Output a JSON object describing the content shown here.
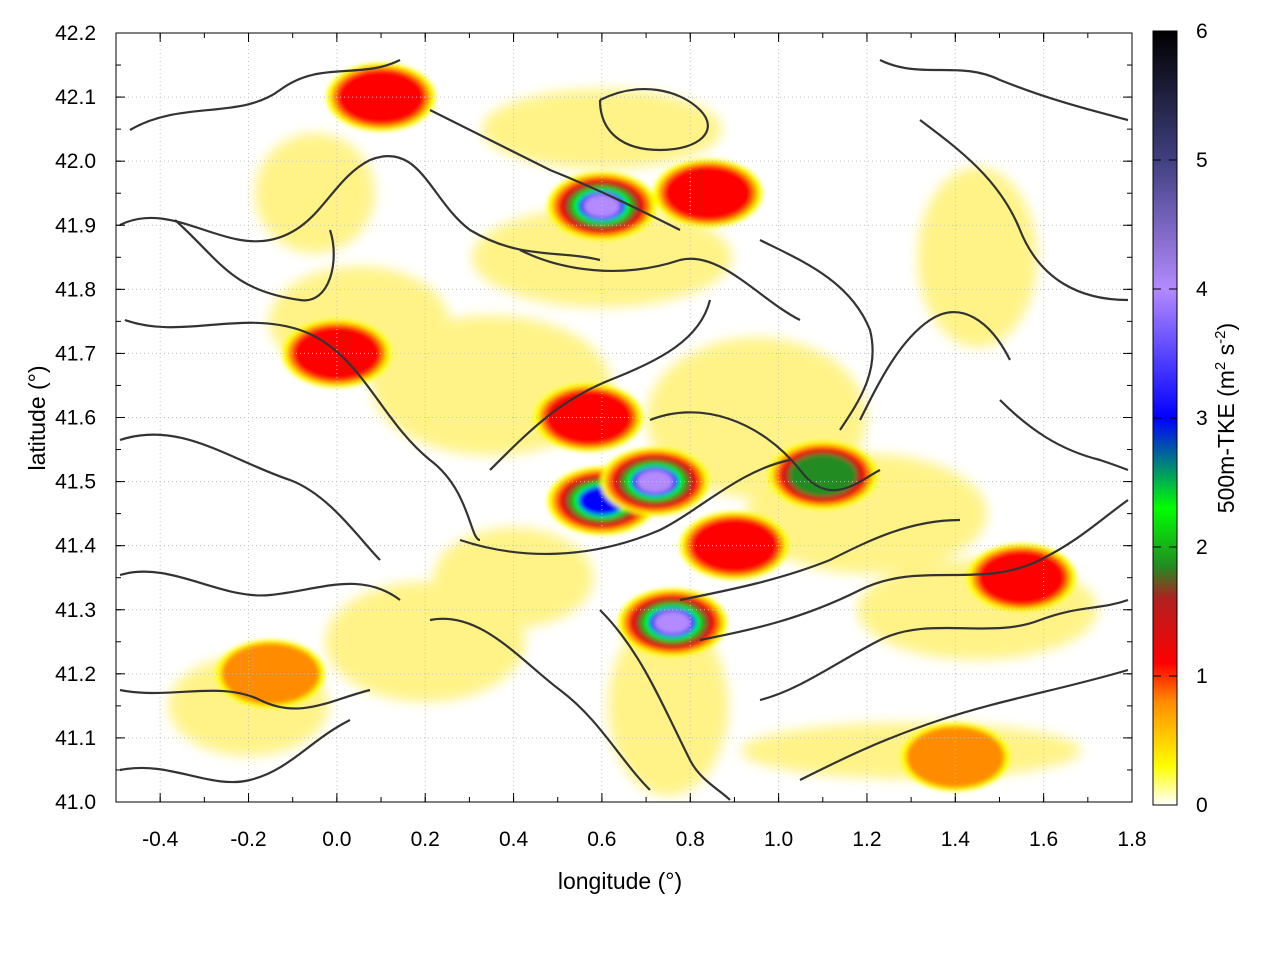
{
  "chart_data": {
    "type": "heatmap",
    "xlabel": "longitude (°)",
    "ylabel": "latitude (°)",
    "colorbar_label": "500m-TKE (m² s⁻²)",
    "colorbar_label_parts": {
      "base": "500m-TKE (m",
      "sup1": "2",
      "mid": " s",
      "sup2": "-2",
      "end": ")"
    },
    "xlim": [
      -0.5,
      1.8
    ],
    "ylim": [
      41.0,
      42.2
    ],
    "clim": [
      0,
      6
    ],
    "x_ticks": [
      "-0.4",
      "-0.2",
      "0.0",
      "0.2",
      "0.4",
      "0.6",
      "0.8",
      "1.0",
      "1.2",
      "1.4",
      "1.6",
      "1.8"
    ],
    "x_tick_values": [
      -0.4,
      -0.2,
      0.0,
      0.2,
      0.4,
      0.6,
      0.8,
      1.0,
      1.2,
      1.4,
      1.6,
      1.8
    ],
    "y_ticks": [
      "41.0",
      "41.1",
      "41.2",
      "41.3",
      "41.4",
      "41.5",
      "41.6",
      "41.7",
      "41.8",
      "41.9",
      "42.0",
      "42.1",
      "42.2"
    ],
    "y_tick_values": [
      41.0,
      41.1,
      41.2,
      41.3,
      41.4,
      41.5,
      41.6,
      41.7,
      41.8,
      41.9,
      42.0,
      42.1,
      42.2
    ],
    "colorbar_ticks": [
      "0",
      "1",
      "2",
      "3",
      "4",
      "5",
      "6"
    ],
    "colorbar_tick_values": [
      0,
      1,
      2,
      3,
      4,
      5,
      6
    ],
    "grid": true,
    "colormap": [
      "#ffffff",
      "#ffff00",
      "#ff8c00",
      "#ff0000",
      "#b02020",
      "#228b22",
      "#00ff00",
      "#0000ff",
      "#b38aff",
      "#404080",
      "#000000"
    ],
    "colormap_stops": [
      0,
      0.3,
      0.8,
      1.1,
      1.6,
      1.85,
      2.3,
      3.0,
      4.0,
      5.0,
      6.0
    ],
    "features": [
      {
        "lon": 0.6,
        "lat": 41.47,
        "tke": 3.2
      },
      {
        "lon": 0.57,
        "lat": 41.6,
        "tke": 1.5
      },
      {
        "lon": 0.72,
        "lat": 41.5,
        "tke": 4.0
      },
      {
        "lon": 0.76,
        "lat": 41.28,
        "tke": 4.5
      },
      {
        "lon": 1.1,
        "lat": 41.51,
        "tke": 2.0
      },
      {
        "lon": 0.6,
        "lat": 41.93,
        "tke": 4.5
      },
      {
        "lon": 0.84,
        "lat": 41.95,
        "tke": 1.5
      },
      {
        "lon": 0.1,
        "lat": 42.1,
        "tke": 1.2
      },
      {
        "lon": 0.0,
        "lat": 41.7,
        "tke": 1.2
      },
      {
        "lon": 1.55,
        "lat": 41.35,
        "tke": 1.3
      },
      {
        "lon": 1.4,
        "lat": 41.07,
        "tke": 1.0
      },
      {
        "lon": -0.15,
        "lat": 41.2,
        "tke": 1.0
      },
      {
        "lon": 0.9,
        "lat": 41.4,
        "tke": 1.1
      }
    ]
  },
  "colors": {
    "contour": "#333333",
    "grid": "#c0c0c0",
    "frame": "#000000"
  }
}
